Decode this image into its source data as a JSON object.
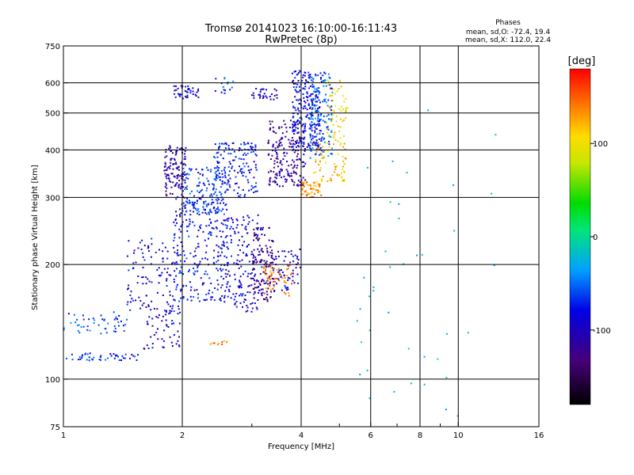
{
  "chart_data": {
    "type": "scatter",
    "title": "Tromsø 20141023 16:10:00-16:11:43",
    "subtitle": "RwPretec (8p)",
    "xlabel": "Frequency [MHz]",
    "ylabel": "Stationary phase Virtual Height [km]",
    "x_scale": "log",
    "y_scale": "log",
    "xlim": [
      1,
      16
    ],
    "ylim": [
      75,
      750
    ],
    "x_ticks": [
      1,
      2,
      4,
      6,
      8,
      10,
      16
    ],
    "x_tick_labels": [
      "1",
      "2",
      "4",
      "6",
      "8",
      "10",
      "16"
    ],
    "x_minor_ticks": [
      3,
      5,
      7,
      9
    ],
    "y_ticks": [
      75,
      100,
      200,
      300,
      400,
      500,
      600,
      750
    ],
    "y_tick_labels": [
      "75",
      "100",
      "200",
      "300",
      "400",
      "500",
      "600",
      "750"
    ],
    "grid": true,
    "stats": {
      "heading": "Phases",
      "line_o": "mean, sd,O: -72.4, 19.4",
      "line_x": "mean, sd,X: 112.0, 22.4"
    },
    "colorbar": {
      "label": "[deg]",
      "range": [
        -180,
        180
      ],
      "ticks": [
        100,
        0,
        -100
      ],
      "tick_labels": [
        "100",
        "0",
        "-100"
      ],
      "colormap": "rainbow"
    },
    "clusters": [
      {
        "x0": 1.0,
        "x1": 1.45,
        "h0": 130,
        "h1": 150,
        "phase": -60,
        "n": 50
      },
      {
        "x0": 1.0,
        "x1": 1.55,
        "h0": 112,
        "h1": 117,
        "phase": -70,
        "n": 45
      },
      {
        "x0": 1.45,
        "x1": 1.95,
        "h0": 150,
        "h1": 235,
        "phase": -85,
        "n": 110
      },
      {
        "x0": 1.6,
        "x1": 2.0,
        "h0": 120,
        "h1": 160,
        "phase": -95,
        "n": 60
      },
      {
        "x0": 1.8,
        "x1": 2.05,
        "h0": 300,
        "h1": 410,
        "phase": -110,
        "n": 120
      },
      {
        "x0": 1.9,
        "x1": 2.6,
        "h0": 160,
        "h1": 300,
        "phase": -80,
        "n": 230
      },
      {
        "x0": 2.0,
        "x1": 2.6,
        "h0": 270,
        "h1": 360,
        "phase": -65,
        "n": 150
      },
      {
        "x0": 2.4,
        "x1": 3.1,
        "h0": 300,
        "h1": 420,
        "phase": -75,
        "n": 150
      },
      {
        "x0": 2.5,
        "x1": 3.2,
        "h0": 150,
        "h1": 270,
        "phase": -90,
        "n": 180
      },
      {
        "x0": 3.0,
        "x1": 3.4,
        "h0": 160,
        "h1": 250,
        "phase": -130,
        "n": 120
      },
      {
        "x0": 3.3,
        "x1": 4.1,
        "h0": 320,
        "h1": 480,
        "phase": -115,
        "n": 200
      },
      {
        "x0": 3.4,
        "x1": 4.0,
        "h0": 170,
        "h1": 220,
        "phase": -90,
        "n": 60
      },
      {
        "x0": 3.8,
        "x1": 4.5,
        "h0": 400,
        "h1": 650,
        "phase": -85,
        "n": 220
      },
      {
        "x0": 4.2,
        "x1": 4.8,
        "h0": 380,
        "h1": 640,
        "phase": -55,
        "n": 150
      },
      {
        "x0": 1.9,
        "x1": 2.2,
        "h0": 545,
        "h1": 590,
        "phase": -90,
        "n": 40
      },
      {
        "x0": 3.0,
        "x1": 3.5,
        "h0": 540,
        "h1": 580,
        "phase": -100,
        "n": 30
      },
      {
        "x0": 2.4,
        "x1": 2.7,
        "h0": 560,
        "h1": 620,
        "phase": -60,
        "n": 15
      },
      {
        "x0": 4.0,
        "x1": 4.5,
        "h0": 300,
        "h1": 330,
        "phase": 130,
        "n": 50
      },
      {
        "x0": 4.3,
        "x1": 5.2,
        "h0": 330,
        "h1": 420,
        "phase": 120,
        "n": 70
      },
      {
        "x0": 4.6,
        "x1": 5.25,
        "h0": 420,
        "h1": 620,
        "phase": 100,
        "n": 60
      },
      {
        "x0": 3.2,
        "x1": 3.8,
        "h0": 165,
        "h1": 200,
        "phase": 140,
        "n": 50
      },
      {
        "x0": 2.3,
        "x1": 2.6,
        "h0": 123,
        "h1": 127,
        "phase": 140,
        "n": 10
      },
      {
        "x0": 5.5,
        "x1": 13,
        "h0": 80,
        "h1": 620,
        "phase": -20,
        "n": 40
      }
    ]
  }
}
